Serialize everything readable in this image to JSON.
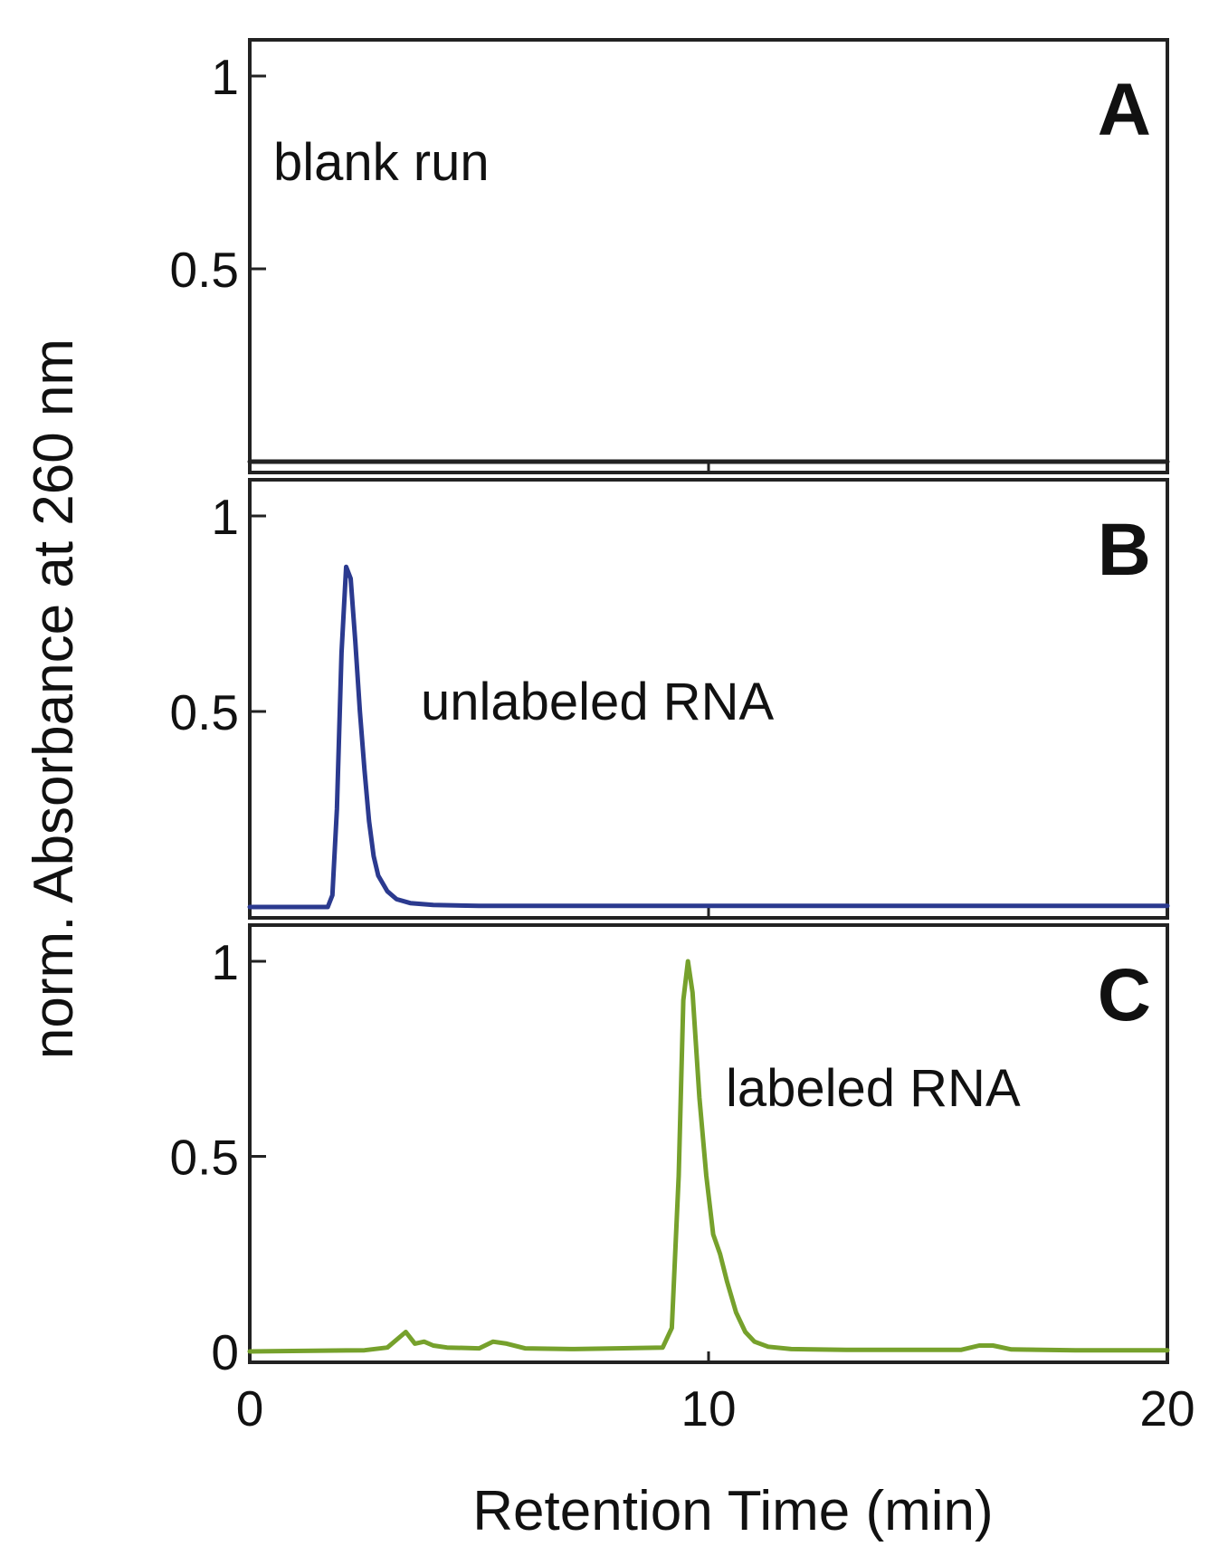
{
  "chart_data": {
    "type": "line",
    "xlabel": "Retention Time (min)",
    "ylabel": "norm. Absorbance at 260 nm",
    "xlim": [
      0,
      20
    ],
    "x_ticks": [
      "0",
      "10",
      "20"
    ],
    "shared_x_axis": true,
    "panels": [
      {
        "letter": "A",
        "caption": "blank run",
        "ylim": [
          0,
          1.1
        ],
        "y_ticks": [
          "0.5",
          "1"
        ],
        "color": "#222222",
        "series": [
          {
            "x": [
              0,
              20
            ],
            "y": [
              0,
              0
            ]
          }
        ]
      },
      {
        "letter": "B",
        "caption": "unlabeled RNA",
        "ylim": [
          0,
          1.1
        ],
        "y_ticks": [
          "0.5",
          "1"
        ],
        "color": "#2b3a8f",
        "series": [
          {
            "x": [
              0,
              1.7,
              1.8,
              1.9,
              2.0,
              2.1,
              2.2,
              2.3,
              2.4,
              2.5,
              2.6,
              2.7,
              2.8,
              3.0,
              3.2,
              3.5,
              4.0,
              5.0,
              10.0,
              15.0,
              20.0
            ],
            "y": [
              0.0,
              0.0,
              0.03,
              0.25,
              0.65,
              0.87,
              0.84,
              0.68,
              0.5,
              0.35,
              0.22,
              0.13,
              0.08,
              0.04,
              0.02,
              0.01,
              0.005,
              0.003,
              0.003,
              0.003,
              0.003
            ]
          }
        ]
      },
      {
        "letter": "C",
        "caption": "labeled RNA",
        "ylim": [
          0,
          1.1
        ],
        "y_ticks": [
          "0",
          "0.5",
          "1"
        ],
        "color": "#76a12c",
        "series": [
          {
            "x": [
              0,
              2.5,
              3.0,
              3.2,
              3.4,
              3.6,
              3.8,
              4.0,
              4.3,
              5.0,
              5.3,
              5.6,
              6.0,
              7.0,
              8.0,
              9.0,
              9.2,
              9.35,
              9.45,
              9.55,
              9.65,
              9.8,
              9.95,
              10.1,
              10.25,
              10.4,
              10.6,
              10.8,
              11.0,
              11.3,
              11.8,
              13.0,
              15.5,
              15.9,
              16.2,
              16.6,
              18.0,
              20.0
            ],
            "y": [
              0.0,
              0.003,
              0.01,
              0.03,
              0.05,
              0.02,
              0.025,
              0.015,
              0.01,
              0.008,
              0.025,
              0.02,
              0.008,
              0.006,
              0.008,
              0.01,
              0.06,
              0.45,
              0.9,
              1.0,
              0.92,
              0.65,
              0.45,
              0.3,
              0.25,
              0.18,
              0.1,
              0.05,
              0.025,
              0.012,
              0.006,
              0.004,
              0.004,
              0.015,
              0.015,
              0.005,
              0.003,
              0.003
            ]
          }
        ]
      }
    ]
  }
}
